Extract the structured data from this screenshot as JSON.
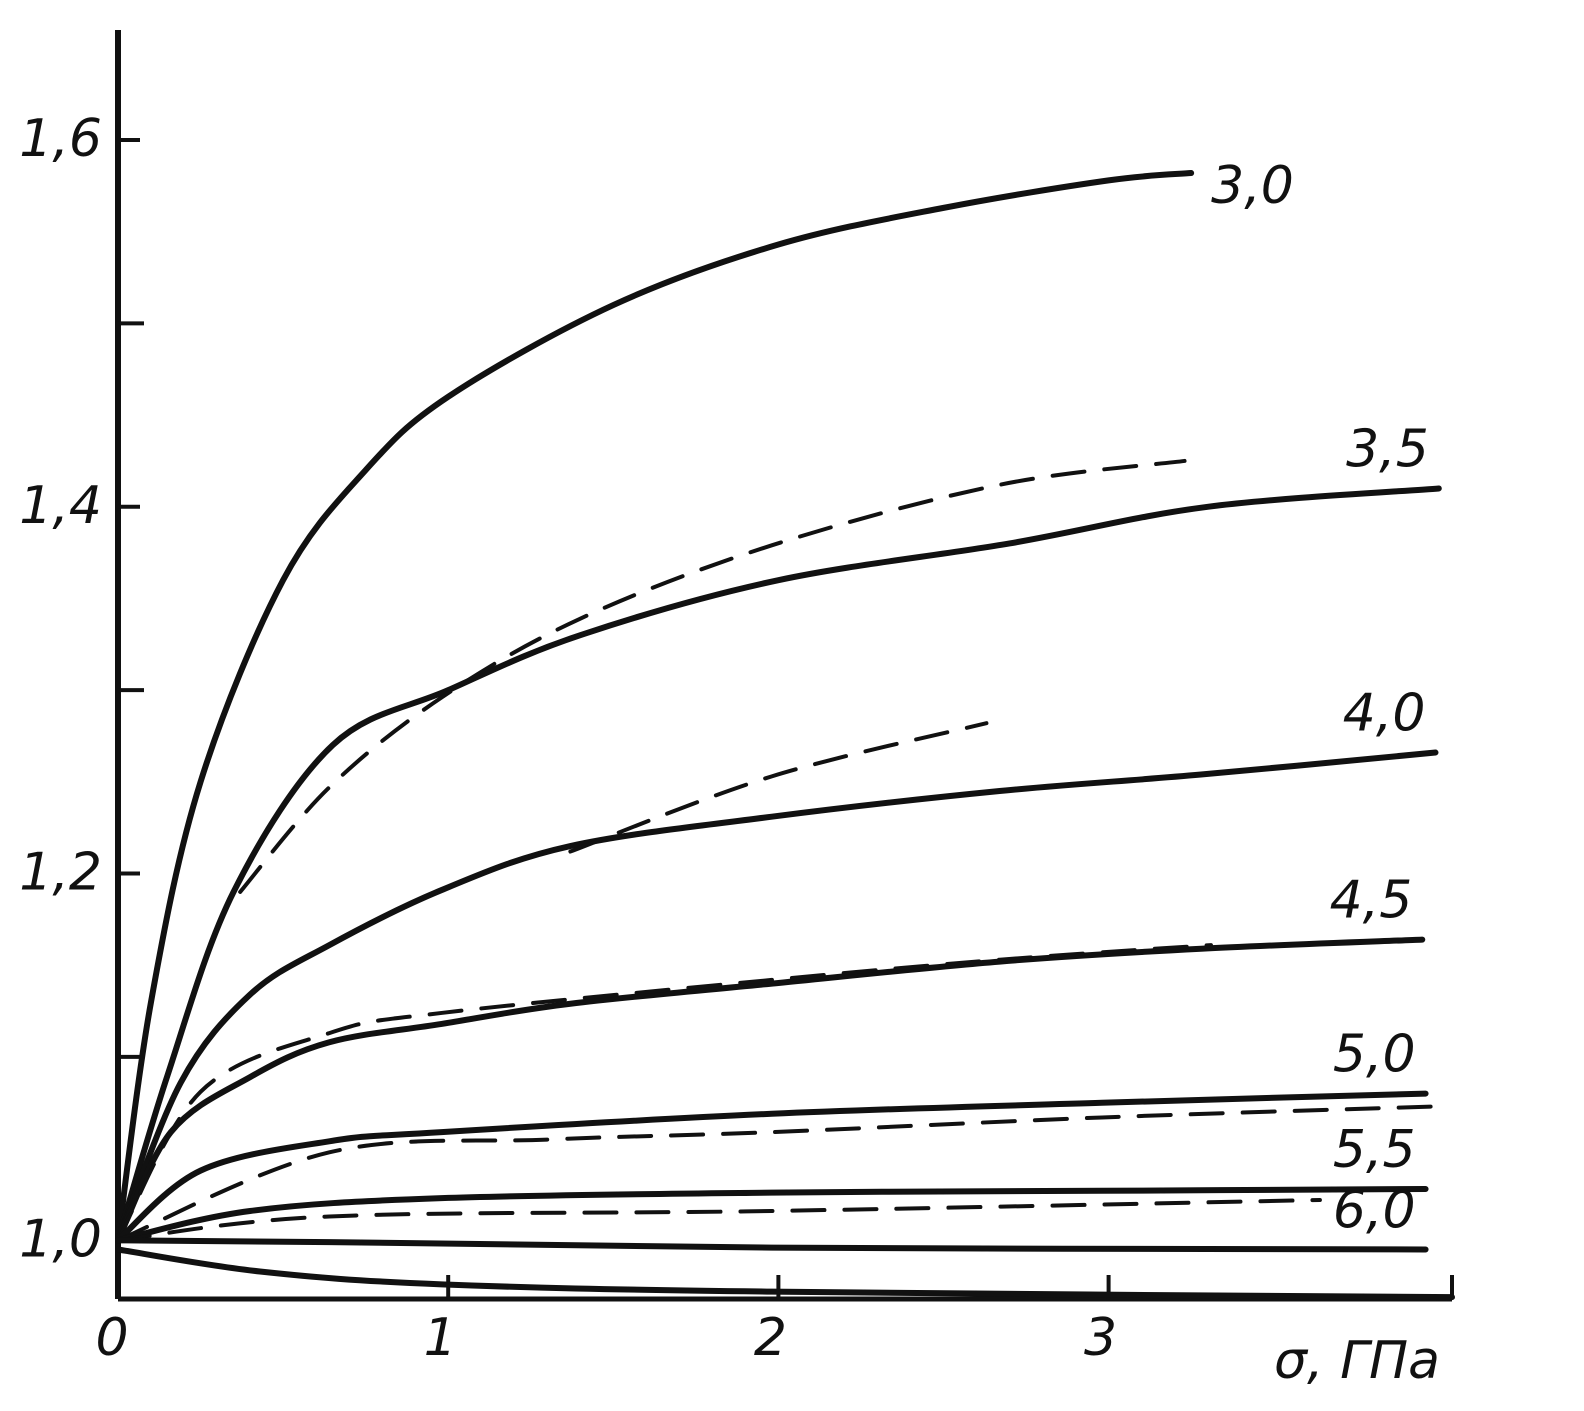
{
  "chart_data": {
    "type": "line",
    "x_label": "σ, ГПа",
    "xlim": [
      0,
      4.04
    ],
    "ylim": [
      0.968,
      1.66
    ],
    "xticks": [
      0,
      1,
      2,
      3
    ],
    "yticks": [
      {
        "value": 1.0,
        "label": "1,0"
      },
      {
        "value": 1.2,
        "label": "1,2"
      },
      {
        "value": 1.4,
        "label": "1,4"
      },
      {
        "value": 1.6,
        "label": "1,6"
      }
    ],
    "minor_yticks": [
      1.1,
      1.3,
      1.5
    ],
    "series": [
      {
        "name": "3,0",
        "color": "#111",
        "x": [
          0,
          0.1,
          0.25,
          0.5,
          0.75,
          1,
          1.5,
          2,
          2.5,
          3,
          3.25
        ],
        "values": [
          1.0,
          1.13,
          1.25,
          1.36,
          1.42,
          1.46,
          1.51,
          1.543,
          1.563,
          1.578,
          1.582
        ]
      },
      {
        "name": "3,5",
        "color": "#111",
        "x": [
          0,
          0.15,
          0.35,
          0.65,
          1,
          1.4,
          2,
          2.7,
          3.3,
          4.0
        ],
        "values": [
          1.0,
          1.09,
          1.19,
          1.27,
          1.3,
          1.33,
          1.36,
          1.38,
          1.4,
          1.41
        ]
      },
      {
        "color": "#111",
        "dashed": true,
        "x": [
          0.37,
          0.64,
          0.98,
          1.4,
          1.98,
          2.67,
          3.23
        ],
        "values": [
          1.19,
          1.247,
          1.296,
          1.339,
          1.379,
          1.412,
          1.425
        ]
      },
      {
        "name": "4,0",
        "color": "#111",
        "x": [
          0,
          0.19,
          0.4,
          0.64,
          0.98,
          1.37,
          1.98,
          2.67,
          3.28,
          3.99
        ],
        "values": [
          1.0,
          1.086,
          1.134,
          1.161,
          1.191,
          1.215,
          1.231,
          1.245,
          1.254,
          1.266
        ]
      },
      {
        "color": "#111",
        "dashed": true,
        "x": [
          1.37,
          1.98,
          2.63
        ],
        "values": [
          1.212,
          1.253,
          1.282
        ]
      },
      {
        "name": "4,5",
        "color": "#111",
        "x": [
          0,
          0.16,
          0.4,
          0.64,
          0.98,
          1.37,
          1.98,
          2.67,
          3.28,
          3.95
        ],
        "values": [
          1.0,
          1.059,
          1.089,
          1.108,
          1.118,
          1.129,
          1.14,
          1.152,
          1.159,
          1.164
        ]
      },
      {
        "color": "#111",
        "dashed": true,
        "x": [
          0,
          0.25,
          0.64,
          0.98,
          1.98,
          2.67,
          3.31
        ],
        "values": [
          1.0,
          1.081,
          1.113,
          1.124,
          1.142,
          1.153,
          1.161
        ]
      },
      {
        "name": "5,0",
        "color": "#111",
        "x": [
          0,
          0.25,
          0.64,
          0.98,
          1.98,
          2.98,
          3.96
        ],
        "values": [
          1.0,
          1.038,
          1.054,
          1.059,
          1.069,
          1.075,
          1.08
        ]
      },
      {
        "color": "#111",
        "dashed": true,
        "x": [
          0,
          0.64,
          1.31,
          1.98,
          2.98,
          3.99
        ],
        "values": [
          1.0,
          1.048,
          1.055,
          1.059,
          1.067,
          1.073
        ]
      },
      {
        "name": "5,5",
        "color": "#111",
        "x": [
          0,
          0.4,
          0.98,
          1.98,
          2.98,
          3.96
        ],
        "values": [
          1.0,
          1.016,
          1.023,
          1.026,
          1.027,
          1.028
        ]
      },
      {
        "color": "#111",
        "dashed": true,
        "x": [
          0,
          0.64,
          1.98,
          3.64
        ],
        "values": [
          1.0,
          1.013,
          1.016,
          1.022
        ]
      },
      {
        "name": "6,0",
        "color": "#111",
        "x": [
          0,
          0.64,
          1.98,
          3.96
        ],
        "values": [
          1.0,
          0.999,
          0.996,
          0.995
        ]
      },
      {
        "color": "#111",
        "x": [
          0,
          0.43,
          0.98,
          1.98,
          4.04
        ],
        "values": [
          0.995,
          0.983,
          0.976,
          0.972,
          0.969
        ]
      }
    ]
  }
}
